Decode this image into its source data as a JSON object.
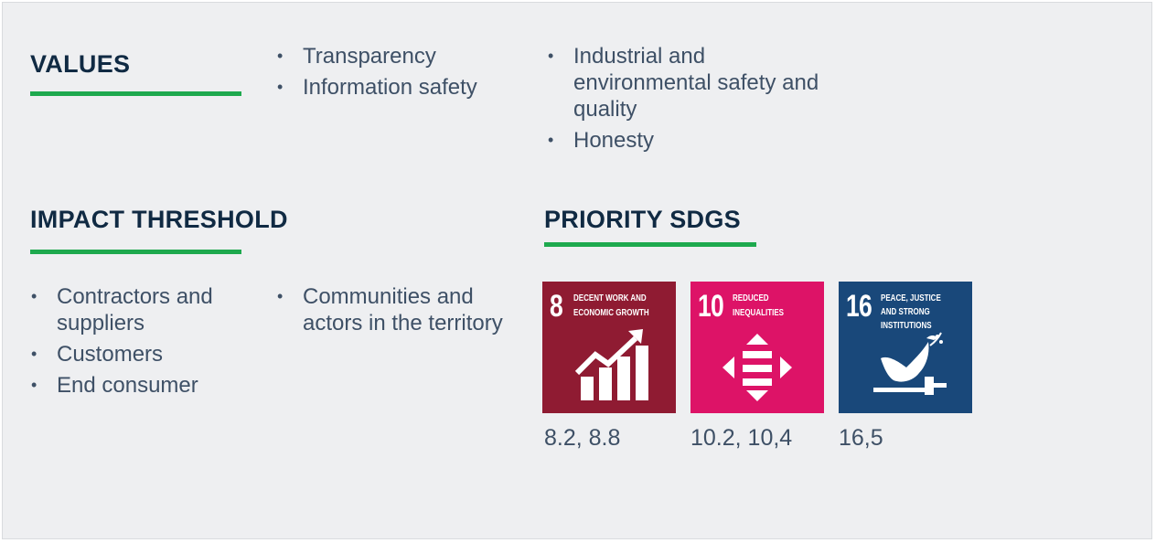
{
  "colors": {
    "panel_bg": "#eeeff1",
    "heading": "#102a43",
    "body_text": "#3e5066",
    "accent_green": "#1ea94e",
    "sdg8": "#8f1b32",
    "sdg10": "#dd1367",
    "sdg16": "#19487a"
  },
  "values": {
    "heading": "VALUES",
    "column1": [
      "Transparency",
      "Information safety"
    ],
    "column2": [
      "Industrial and environmental safety and quality",
      "Honesty"
    ]
  },
  "impact": {
    "heading": "IMPACT THRESHOLD",
    "column1": [
      "Contractors and suppliers",
      "Customers",
      "End consumer"
    ],
    "column2": [
      "Communities and actors in the territory"
    ]
  },
  "sdgs": {
    "heading": "PRIORITY SDGS",
    "items": [
      {
        "number": "8",
        "title_line1": "DECENT WORK AND",
        "title_line2": "ECONOMIC GROWTH",
        "icon": "rising-bar-chart-icon",
        "targets": "8.2, 8.8"
      },
      {
        "number": "10",
        "title_line1": "REDUCED",
        "title_line2": "INEQUALITIES",
        "icon": "equality-arrows-icon",
        "targets": "10.2, 10,4"
      },
      {
        "number": "16",
        "title_line1": "PEACE, JUSTICE",
        "title_line2": "AND STRONG",
        "title_line3": "INSTITUTIONS",
        "icon": "dove-gavel-icon",
        "targets": "16,5"
      }
    ]
  }
}
